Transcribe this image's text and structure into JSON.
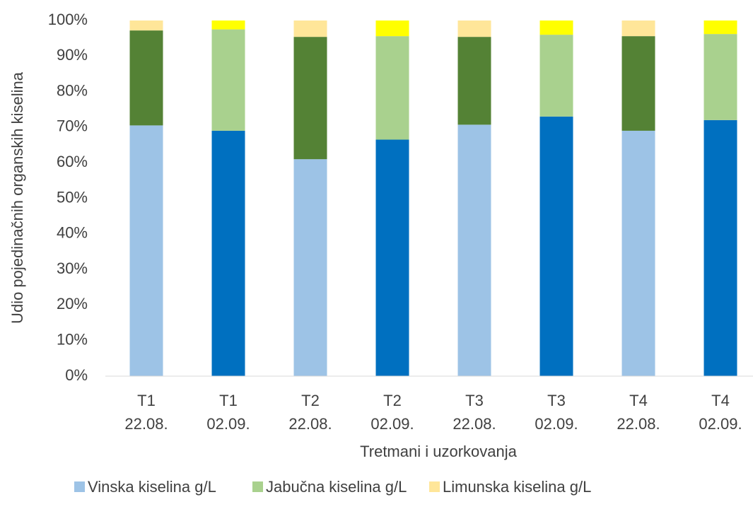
{
  "chart_data": {
    "type": "stacked_bar",
    "x_label": "Tretmani i uzorkovanja",
    "y_label": "Udio pojedinačnih organskih kiselina",
    "categories": [
      [
        "T1",
        "22.08."
      ],
      [
        "T1",
        "02.09."
      ],
      [
        "T2",
        "22.08."
      ],
      [
        "T2",
        "02.09."
      ],
      [
        "T3",
        "22.08."
      ],
      [
        "T3",
        "02.09."
      ],
      [
        "T4",
        "22.08."
      ],
      [
        "T4",
        "02.09."
      ]
    ],
    "series": [
      {
        "name": "Vinska kiselina g/L",
        "color": "#9dc3e6",
        "colors": [
          "#9dc3e6",
          "#0070c0",
          "#9dc3e6",
          "#0070c0",
          "#9dc3e6",
          "#0070c0",
          "#9dc3e6",
          "#0070c0"
        ],
        "values": [
          70.5,
          69,
          61,
          66.5,
          70.7,
          73,
          69,
          72
        ]
      },
      {
        "name": "Jabučna kiselina g/L",
        "color": "#a9d18e",
        "colors": [
          "#548235",
          "#a9d18e",
          "#548235",
          "#a9d18e",
          "#548235",
          "#a9d18e",
          "#548235",
          "#a9d18e"
        ],
        "values": [
          26.7,
          28.5,
          34.4,
          29.1,
          24.7,
          23,
          26.6,
          24.2
        ]
      },
      {
        "name": "Limunska kiselina g/L",
        "color": "#ffe699",
        "colors": [
          "#ffe699",
          "#ffff00",
          "#ffe699",
          "#ffff00",
          "#ffe699",
          "#ffff00",
          "#ffe699",
          "#ffff00"
        ],
        "values": [
          2.8,
          2.5,
          4.6,
          4.4,
          4.6,
          4,
          4.4,
          3.8
        ]
      }
    ],
    "ylim": [
      0,
      100
    ],
    "yticks": [
      {
        "value": 0,
        "label": "0%"
      },
      {
        "value": 10,
        "label": "10%"
      },
      {
        "value": 20,
        "label": "20%"
      },
      {
        "value": 30,
        "label": "30%"
      },
      {
        "value": 40,
        "label": "40%"
      },
      {
        "value": 50,
        "label": "50%"
      },
      {
        "value": 60,
        "label": "60%"
      },
      {
        "value": 70,
        "label": "70%"
      },
      {
        "value": 80,
        "label": "80%"
      },
      {
        "value": 90,
        "label": "90%"
      },
      {
        "value": 100,
        "label": "100%"
      }
    ],
    "legend": "bottom"
  }
}
